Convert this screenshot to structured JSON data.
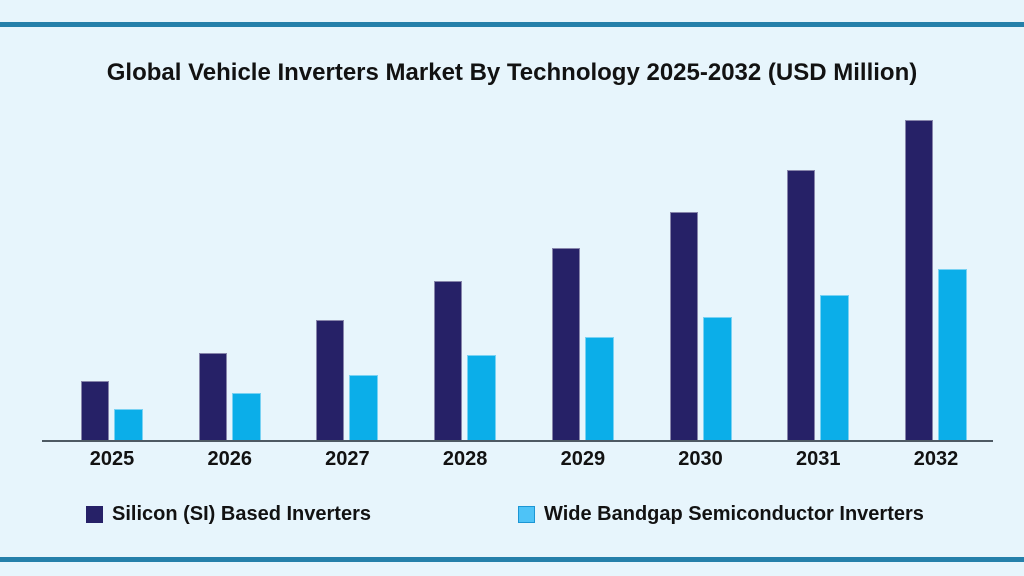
{
  "page": {
    "background_color": "#e7f5fc",
    "divider_color": "#2580aa",
    "axis_line_color": "#4e5a63"
  },
  "chart_data": {
    "type": "bar",
    "title": "Global Vehicle Inverters Market By Technology 2025-2032 (USD Million)",
    "categories": [
      "2025",
      "2026",
      "2027",
      "2028",
      "2029",
      "2030",
      "2031",
      "2032"
    ],
    "series": [
      {
        "name": "Silicon (SI) Based Inverters",
        "color": "#262167",
        "values": [
          60,
          88,
          121,
          160,
          193,
          229,
          271,
          321
        ]
      },
      {
        "name": "Wide Bandgap Semiconductor Inverters",
        "color": "#0baee9",
        "legend_swatch_color": "#4ec3f7",
        "values": [
          32,
          48,
          66,
          86,
          104,
          124,
          146,
          172
        ]
      }
    ],
    "xlabel": "",
    "ylabel": "",
    "ylim": [
      0,
      350
    ],
    "y_axis_shown": false,
    "grid": false,
    "legend_position": "bottom"
  }
}
